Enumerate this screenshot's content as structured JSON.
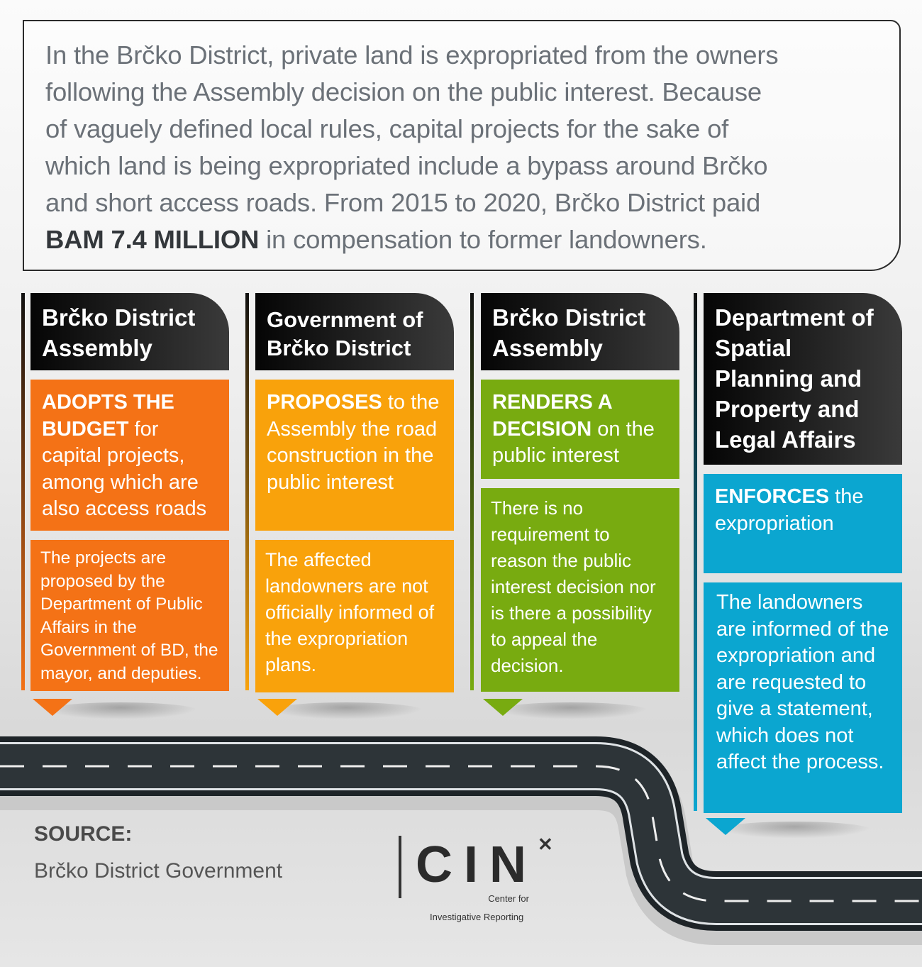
{
  "intro": {
    "lines": [
      "In the Brčko District, private land is expropriated from the owners",
      "following the Assembly decision on the public interest. Because",
      "of vaguely defined local rules, capital projects for the sake of",
      "which land is being expropriated include a bypass around Brčko",
      "and short access roads. From 2015 to 2020, Brčko District paid"
    ],
    "highlight": "BAM 7.4 MILLION",
    "last_line_rest": " in compensation to former landowners."
  },
  "columns": [
    {
      "header": "Brčko District Assembly",
      "action_bold": "ADOPTS THE BUDGET",
      "action_rest": " for capital projects, among which are also access roads",
      "note": "The projects are proposed by the Department of Public Affairs in the Government of BD, the mayor, and deputies.",
      "color": "#f47216"
    },
    {
      "header": "Government of Brčko District",
      "action_bold": "PROPOSES",
      "action_rest": " to the Assembly the road construction in the public interest",
      "note": "The affected landowners are not officially informed of the expropriation plans.",
      "color": "#f9a20b"
    },
    {
      "header": "Brčko District Assembly",
      "action_bold": "RENDERS A DECISION",
      "action_rest": " on the public interest",
      "note": "There is no requirement to reason the public interest decision nor is there a possibility to appeal the decision.",
      "color": "#78ab10"
    },
    {
      "header": "Department of Spatial Planning and Property and Legal Affairs",
      "action_bold": "ENFORCES",
      "action_rest": " the expropriation",
      "note": "The landowners are informed of the expropriation and are requested to give a statement, which does not affect the process.",
      "color": "#0ba6d0"
    }
  ],
  "source": {
    "title": "SOURCE:",
    "text": "Brčko District Government"
  },
  "logo": {
    "name": "CIN",
    "line1": "Center for",
    "line2": "Investigative Reporting"
  }
}
